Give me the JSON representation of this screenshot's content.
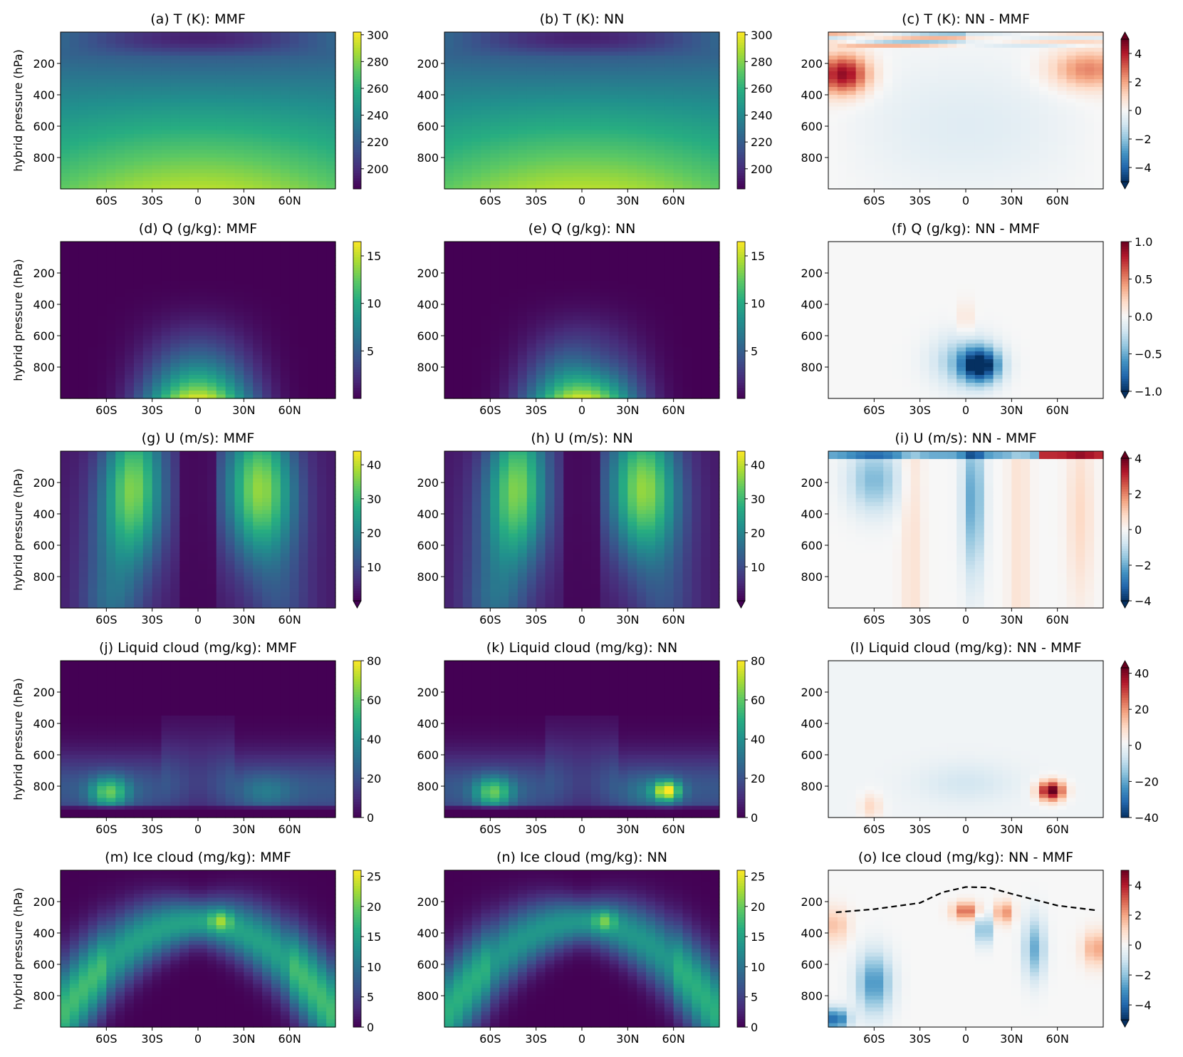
{
  "chart_data": {
    "type": "heatmap",
    "rows": [
      {
        "variable": "T",
        "ylabel": "hybrid pressure (hPa)",
        "panels": [
          {
            "id": "a",
            "title": "(a) T (K): MMF",
            "kind": "field",
            "cmap": "viridis",
            "vmin": 185,
            "vmax": 302,
            "cbar_ticks": [
              200,
              220,
              240,
              260,
              280,
              300
            ],
            "extend": "neither"
          },
          {
            "id": "b",
            "title": "(b) T (K): NN",
            "kind": "field",
            "cmap": "viridis",
            "vmin": 185,
            "vmax": 302,
            "cbar_ticks": [
              200,
              220,
              240,
              260,
              280,
              300
            ],
            "extend": "neither"
          },
          {
            "id": "c",
            "title": "(c) T (K): NN - MMF",
            "kind": "diff",
            "cmap": "RdBu_r",
            "vmin": -5,
            "vmax": 5,
            "cbar_ticks": [
              -4,
              -2,
              0,
              2,
              4
            ],
            "extend": "both"
          }
        ]
      },
      {
        "variable": "Q",
        "ylabel": "hybrid pressure (hPa)",
        "panels": [
          {
            "id": "d",
            "title": "(d) Q (g/kg): MMF",
            "kind": "field",
            "cmap": "viridis",
            "vmin": 0,
            "vmax": 16.5,
            "cbar_ticks": [
              5,
              10,
              15
            ],
            "extend": "neither"
          },
          {
            "id": "e",
            "title": "(e) Q (g/kg): NN",
            "kind": "field",
            "cmap": "viridis",
            "vmin": 0,
            "vmax": 16.5,
            "cbar_ticks": [
              5,
              10,
              15
            ],
            "extend": "neither"
          },
          {
            "id": "f",
            "title": "(f) Q (g/kg): NN - MMF",
            "kind": "diff",
            "cmap": "RdBu_r",
            "vmin": -1.0,
            "vmax": 1.0,
            "cbar_ticks": [
              "1.0",
              "0.5",
              "0.0",
              "−0.5",
              "−1.0"
            ],
            "extend": "min"
          }
        ]
      },
      {
        "variable": "U",
        "ylabel": "hybrid pressure (hPa)",
        "panels": [
          {
            "id": "g",
            "title": "(g) U (m/s): MMF",
            "kind": "field",
            "cmap": "viridis",
            "vmin": 0,
            "vmax": 44,
            "cbar_ticks": [
              10,
              20,
              30,
              40
            ],
            "extend": "min"
          },
          {
            "id": "h",
            "title": "(h) U (m/s): NN",
            "kind": "field",
            "cmap": "viridis",
            "vmin": 0,
            "vmax": 44,
            "cbar_ticks": [
              10,
              20,
              30,
              40
            ],
            "extend": "min"
          },
          {
            "id": "i",
            "title": "(i) U (m/s): NN - MMF",
            "kind": "diff",
            "cmap": "RdBu_r",
            "vmin": -4,
            "vmax": 4,
            "cbar_ticks": [
              -4,
              -2,
              0,
              2,
              4
            ],
            "extend": "both"
          }
        ]
      },
      {
        "variable": "Liquid cloud",
        "ylabel": "hybrid pressure (hPa)",
        "panels": [
          {
            "id": "j",
            "title": "(j) Liquid cloud (mg/kg): MMF",
            "kind": "field",
            "cmap": "viridis",
            "vmin": 0,
            "vmax": 80,
            "cbar_ticks": [
              0,
              20,
              40,
              60,
              80
            ],
            "extend": "neither"
          },
          {
            "id": "k",
            "title": "(k) Liquid cloud (mg/kg): NN",
            "kind": "field",
            "cmap": "viridis",
            "vmin": 0,
            "vmax": 80,
            "cbar_ticks": [
              0,
              20,
              40,
              60,
              80
            ],
            "extend": "neither"
          },
          {
            "id": "l",
            "title": "(l) Liquid cloud (mg/kg): NN - MMF",
            "kind": "diff",
            "cmap": "RdBu_r",
            "vmin": -40,
            "vmax": 43,
            "cbar_ticks": [
              -40,
              -20,
              0,
              20,
              40
            ],
            "extend": "max"
          }
        ]
      },
      {
        "variable": "Ice cloud",
        "ylabel": "hybrid pressure (hPa)",
        "panels": [
          {
            "id": "m",
            "title": "(m) Ice cloud (mg/kg): MMF",
            "kind": "field",
            "cmap": "viridis",
            "vmin": 0,
            "vmax": 26,
            "cbar_ticks": [
              0,
              5,
              10,
              15,
              20,
              25
            ],
            "extend": "neither"
          },
          {
            "id": "n",
            "title": "(n) Ice cloud (mg/kg): NN",
            "kind": "field",
            "cmap": "viridis",
            "vmin": 0,
            "vmax": 26,
            "cbar_ticks": [
              0,
              5,
              10,
              15,
              20,
              25
            ],
            "extend": "neither"
          },
          {
            "id": "o",
            "title": "(o) Ice cloud (mg/kg): NN - MMF",
            "kind": "diff",
            "cmap": "RdBu_r",
            "vmin": -5,
            "vmax": 5,
            "cbar_ticks": [
              -4,
              -2,
              0,
              2,
              4
            ],
            "extend": "min",
            "dashed_line": {
              "lat": [
                -85,
                -60,
                -30,
                -15,
                0,
                15,
                30,
                60,
                85
              ],
              "pressure": [
                268,
                248,
                208,
                140,
                107,
                110,
                150,
                225,
                255
              ]
            }
          }
        ]
      }
    ],
    "x_axis": {
      "lat_range": [
        -90,
        90
      ],
      "ticks": [
        -60,
        -30,
        0,
        30,
        60
      ],
      "tick_labels": [
        "60S",
        "30S",
        "0",
        "30N",
        "60N"
      ]
    },
    "y_axis": {
      "pressure_range": [
        0,
        1000
      ],
      "inverted": true,
      "ticks": [
        200,
        400,
        600,
        800
      ]
    }
  }
}
